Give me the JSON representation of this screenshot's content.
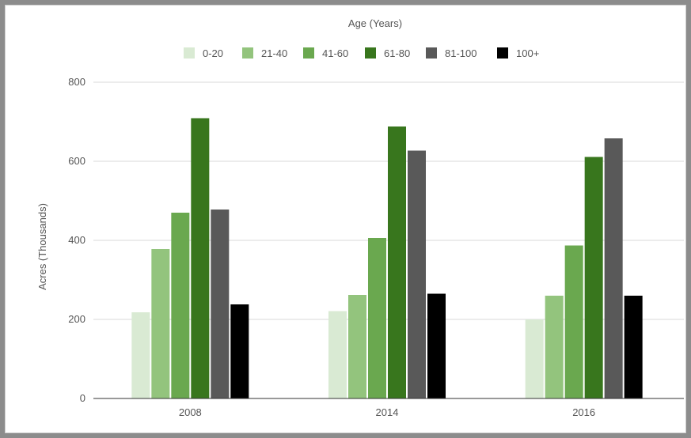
{
  "chart_data": {
    "type": "bar",
    "title": "Age (Years)",
    "xlabel": "",
    "ylabel": "Acres (Thousands)",
    "categories": [
      "2008",
      "2014",
      "2016"
    ],
    "ylim": [
      0,
      800
    ],
    "yticks": [
      "0",
      "200",
      "400",
      "600",
      "800"
    ],
    "ytick_values": [
      0,
      200,
      400,
      600,
      800
    ],
    "grid": true,
    "legend_position": "top",
    "series": [
      {
        "name": "0-20",
        "color": "#d9ead3",
        "values": [
          218,
          221,
          200
        ]
      },
      {
        "name": "21-40",
        "color": "#93c47d",
        "values": [
          378,
          262,
          260
        ]
      },
      {
        "name": "41-60",
        "color": "#6aa84f",
        "values": [
          470,
          406,
          387
        ]
      },
      {
        "name": "61-80",
        "color": "#38761d",
        "values": [
          709,
          688,
          611
        ]
      },
      {
        "name": "81-100",
        "color": "#595959",
        "values": [
          478,
          627,
          658
        ]
      },
      {
        "name": "100+",
        "color": "#000000",
        "values": [
          238,
          265,
          260
        ]
      }
    ]
  }
}
